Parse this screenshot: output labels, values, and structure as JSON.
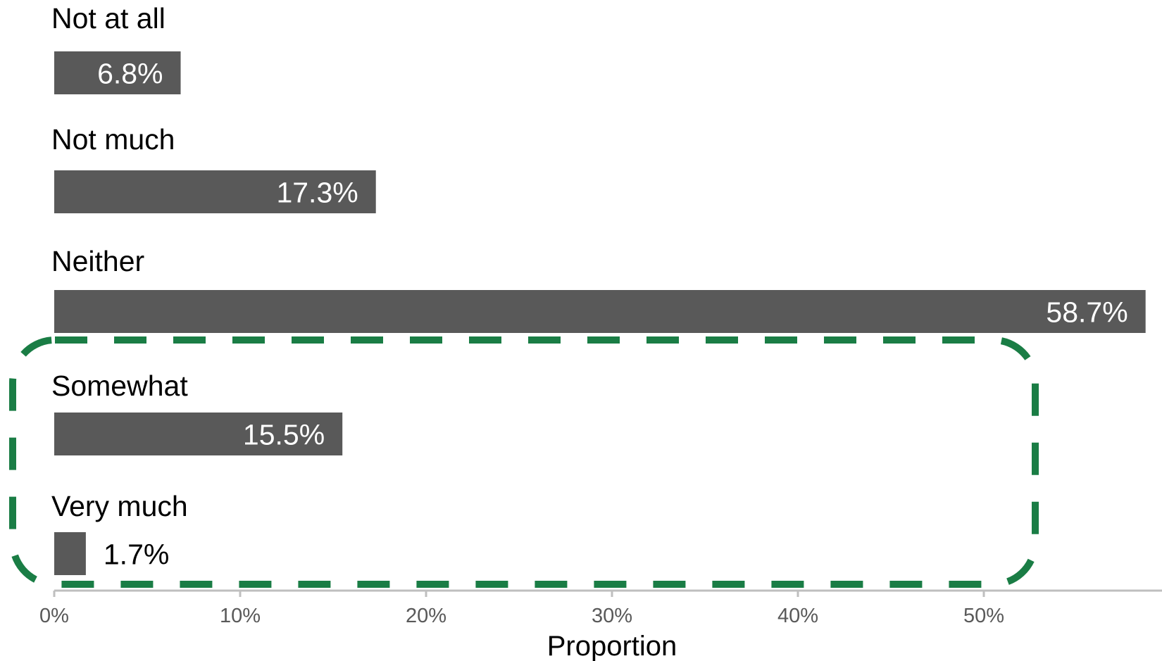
{
  "chart_data": {
    "type": "bar",
    "orientation": "horizontal",
    "categories": [
      "Not at all",
      "Not much",
      "Neither",
      "Somewhat",
      "Very much"
    ],
    "values": [
      6.8,
      17.3,
      58.7,
      15.5,
      1.7
    ],
    "value_labels": [
      "6.8%",
      "17.3%",
      "58.7%",
      "15.5%",
      "1.7%"
    ],
    "xlabel": "Proportion",
    "xlim": [
      0,
      58.7
    ],
    "x_ticks": [
      0,
      10,
      20,
      30,
      40,
      50
    ],
    "x_tick_labels": [
      "0%",
      "10%",
      "20%",
      "30%",
      "40%",
      "50%"
    ],
    "grid": false,
    "highlight": {
      "style": "dashed rounded box",
      "categories": [
        "Somewhat",
        "Very much"
      ]
    },
    "colors": {
      "bar": "#595959",
      "label_inside": "#ffffff",
      "label_outside": "#000000",
      "axis": "#bfbfbf",
      "tick_text": "#595959",
      "highlight": "#1a7d45"
    }
  }
}
